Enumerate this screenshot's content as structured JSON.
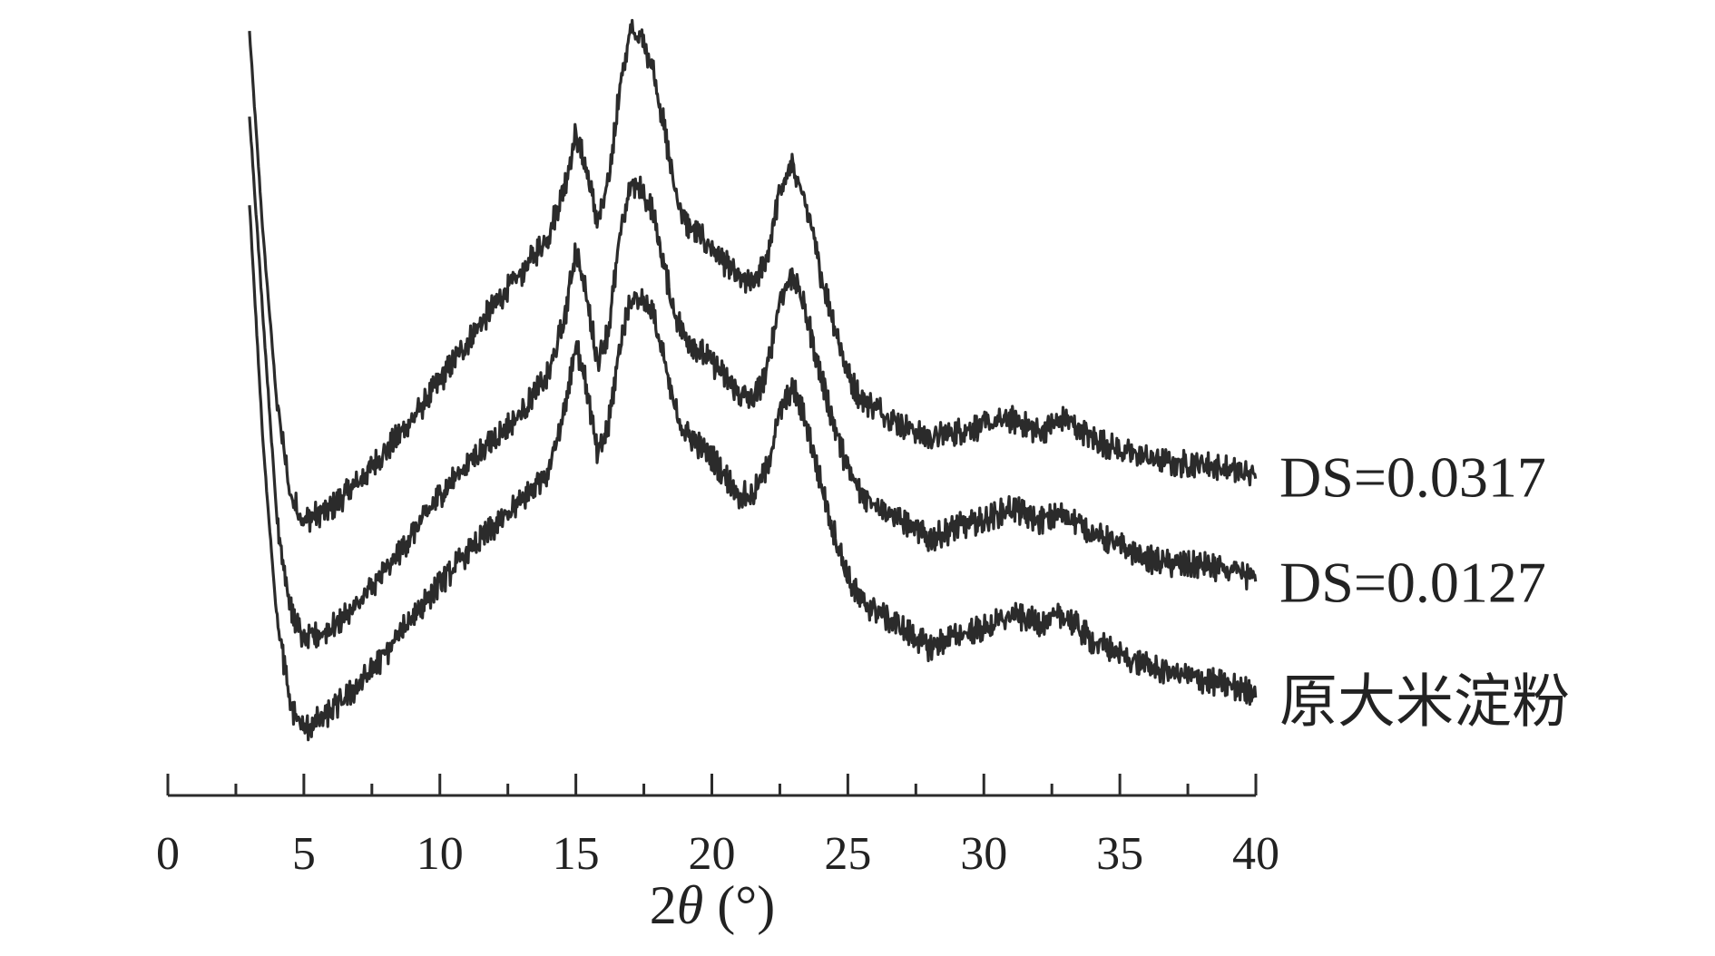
{
  "chart_data": {
    "type": "line",
    "xlabel_prefix": "2",
    "xlabel_symbol": "θ",
    "xlabel_suffix": " (°)",
    "xlim": [
      0,
      40
    ],
    "x_major_ticks": [
      0,
      5,
      10,
      15,
      20,
      25,
      30,
      35,
      40
    ],
    "x_minor_step": 2.5,
    "y_axis_shown": false,
    "grid": false,
    "series": [
      {
        "name": "DS=0.0317",
        "x": [
          3.0,
          3.5,
          4.0,
          4.5,
          5.0,
          6.0,
          7.0,
          8.0,
          9.0,
          10.0,
          11.0,
          12.0,
          13.0,
          14.0,
          14.6,
          15.0,
          15.4,
          15.8,
          16.2,
          16.6,
          17.0,
          17.4,
          17.8,
          18.2,
          18.6,
          19.0,
          20.0,
          21.0,
          21.5,
          22.0,
          22.5,
          23.0,
          23.5,
          24.0,
          24.5,
          25.0,
          25.5,
          26.0,
          27.0,
          28.0,
          29.0,
          30.0,
          31.0,
          32.0,
          33.0,
          34.0,
          35.0,
          36.0,
          37.0,
          38.0,
          39.0,
          40.0
        ],
        "y": [
          100,
          68,
          42,
          27,
          23,
          25,
          29,
          34,
          39,
          45,
          51,
          57,
          62,
          68,
          76,
          84,
          78,
          70,
          76,
          91,
          100,
          99,
          95,
          86,
          76,
          70,
          66,
          61,
          60,
          64,
          75,
          79,
          72,
          62,
          54,
          46,
          42,
          41,
          38,
          36,
          37,
          38,
          39,
          37,
          39,
          36,
          34,
          33,
          32,
          32,
          31,
          30
        ]
      },
      {
        "name": "DS=0.0127",
        "x": [
          3.0,
          3.5,
          4.0,
          4.5,
          5.0,
          6.0,
          7.0,
          8.0,
          9.0,
          10.0,
          11.0,
          12.0,
          13.0,
          14.0,
          14.6,
          15.0,
          15.4,
          15.8,
          16.2,
          16.6,
          17.0,
          17.4,
          17.8,
          18.2,
          18.6,
          19.0,
          20.0,
          21.0,
          21.5,
          22.0,
          22.5,
          23.0,
          23.5,
          24.0,
          24.5,
          25.0,
          25.5,
          26.0,
          27.0,
          28.0,
          29.0,
          30.0,
          31.0,
          32.0,
          33.0,
          34.0,
          35.0,
          36.0,
          37.0,
          38.0,
          39.0,
          40.0
        ],
        "y": [
          87,
          55,
          24,
          9,
          4,
          6,
          10,
          15,
          21,
          27,
          32,
          36,
          40,
          46,
          55,
          66,
          58,
          48,
          53,
          67,
          76,
          75,
          72,
          64,
          56,
          52,
          48,
          43,
          42,
          46,
          58,
          62,
          55,
          46,
          38,
          31,
          27,
          26,
          23,
          20,
          22,
          23,
          25,
          23,
          24,
          21,
          19,
          17,
          16,
          16,
          15,
          14
        ]
      },
      {
        "name": "原大米淀粉",
        "x": [
          3.0,
          3.5,
          4.0,
          4.5,
          5.0,
          6.0,
          7.0,
          8.0,
          9.0,
          10.0,
          11.0,
          12.0,
          13.0,
          14.0,
          14.6,
          15.0,
          15.4,
          15.8,
          16.2,
          16.6,
          17.0,
          17.4,
          17.8,
          18.2,
          18.6,
          19.0,
          20.0,
          21.0,
          21.5,
          22.0,
          22.5,
          23.0,
          23.5,
          24.0,
          24.5,
          25.0,
          25.5,
          26.0,
          27.0,
          28.0,
          29.0,
          30.0,
          31.0,
          32.0,
          33.0,
          34.0,
          35.0,
          36.0,
          37.0,
          38.0,
          39.0,
          40.0
        ],
        "y": [
          73,
          35,
          8,
          -6,
          -10,
          -7,
          -3,
          2,
          8,
          13,
          18,
          22,
          26,
          31,
          41,
          51,
          44,
          33,
          38,
          50,
          58,
          58,
          56,
          49,
          41,
          37,
          33,
          27,
          27,
          31,
          40,
          44,
          38,
          29,
          21,
          14,
          10,
          9,
          6,
          3,
          5,
          6,
          8,
          7,
          8,
          4,
          2,
          0,
          -1,
          -2,
          -3,
          -4
        ]
      }
    ]
  }
}
